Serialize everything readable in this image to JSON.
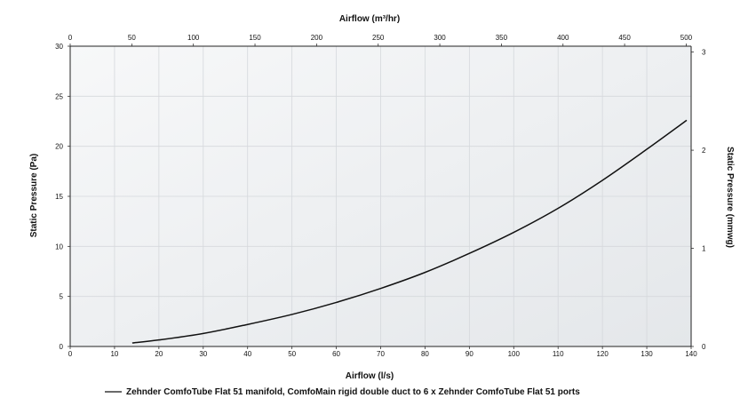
{
  "chart_data": {
    "type": "line",
    "title": "",
    "xlabel": "Airflow (l/s)",
    "ylabel": "Static Pressure (Pa)",
    "x2label": "Airflow (m³/hr)",
    "y2label": "Static Pressure (mmwg)",
    "xlim": [
      0,
      140
    ],
    "ylim": [
      0,
      30
    ],
    "x2lim": [
      0,
      504
    ],
    "y2lim": [
      0,
      3.06
    ],
    "xticks": [
      0,
      10,
      20,
      30,
      40,
      50,
      60,
      70,
      80,
      90,
      100,
      110,
      120,
      130,
      140
    ],
    "yticks": [
      0,
      5,
      10,
      15,
      20,
      25,
      30
    ],
    "x2ticks": [
      0,
      50,
      100,
      150,
      200,
      250,
      300,
      350,
      400,
      450,
      500
    ],
    "y2ticks": [
      0,
      1,
      2,
      3
    ],
    "grid": true,
    "legend": "bottom",
    "colors": {
      "line": "#111111",
      "plot_bg_top": "#f7f8f9",
      "plot_bg_bottom": "#e6e9ec",
      "grid": "#d5d8dc"
    },
    "series": [
      {
        "name": "Zehnder ComfoTube Flat 51 manifold, ComfoMain rigid double duct to 6 x Zehnder ComfoTube Flat 51 ports",
        "x": [
          14,
          20,
          30,
          40,
          50,
          60,
          70,
          80,
          90,
          100,
          110,
          120,
          130,
          139
        ],
        "y": [
          0.35,
          0.65,
          1.3,
          2.2,
          3.2,
          4.4,
          5.8,
          7.4,
          9.3,
          11.4,
          13.8,
          16.6,
          19.7,
          22.6
        ]
      }
    ]
  }
}
